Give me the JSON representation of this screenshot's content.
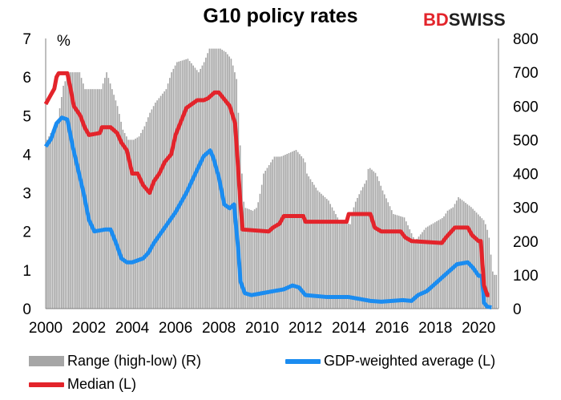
{
  "title": "G10 policy rates",
  "logo": {
    "part1": "BD",
    "part2": "SWISS"
  },
  "colors": {
    "range": "#a6a6a6",
    "gdp": "#1b8cf0",
    "median": "#e3242b"
  },
  "chart_data": {
    "type": "bar+line",
    "left_axis": {
      "label": "%",
      "min": 0,
      "max": 7,
      "ticks": [
        0,
        1,
        2,
        3,
        4,
        5,
        6,
        7
      ]
    },
    "right_axis": {
      "min": 0,
      "max": 800,
      "ticks": [
        0,
        100,
        200,
        300,
        400,
        500,
        600,
        700,
        800
      ]
    },
    "x_ticks": [
      "2000",
      "2002",
      "2004",
      "2006",
      "2008",
      "2010",
      "2012",
      "2014",
      "2016",
      "2018",
      "2020"
    ],
    "x_range": [
      2000,
      2020.917
    ],
    "grid": false,
    "legend_position": "bottom",
    "series": [
      {
        "name": "Range (high-low) (R)",
        "type": "bar",
        "axis": "right",
        "points": [
          [
            2000,
            500
          ],
          [
            2000.5,
            560
          ],
          [
            2000.75,
            660
          ],
          [
            2001,
            700
          ],
          [
            2001.5,
            700
          ],
          [
            2001.75,
            650
          ],
          [
            2002,
            650
          ],
          [
            2002.5,
            650
          ],
          [
            2002.75,
            700
          ],
          [
            2003.25,
            600
          ],
          [
            2003.5,
            530
          ],
          [
            2003.75,
            500
          ],
          [
            2004,
            500
          ],
          [
            2004.25,
            510
          ],
          [
            2004.5,
            540
          ],
          [
            2004.75,
            580
          ],
          [
            2005,
            610
          ],
          [
            2005.5,
            650
          ],
          [
            2005.75,
            700
          ],
          [
            2006,
            730
          ],
          [
            2006.5,
            740
          ],
          [
            2006.75,
            720
          ],
          [
            2007,
            700
          ],
          [
            2007.25,
            730
          ],
          [
            2007.5,
            770
          ],
          [
            2007.75,
            770
          ],
          [
            2008,
            770
          ],
          [
            2008.25,
            760
          ],
          [
            2008.5,
            740
          ],
          [
            2008.75,
            680
          ],
          [
            2008.9,
            500
          ],
          [
            2009.1,
            300
          ],
          [
            2009.5,
            290
          ],
          [
            2009.7,
            300
          ],
          [
            2009.9,
            360
          ],
          [
            2010,
            400
          ],
          [
            2010.3,
            430
          ],
          [
            2010.5,
            450
          ],
          [
            2010.8,
            450
          ],
          [
            2011.5,
            470
          ],
          [
            2011.9,
            440
          ],
          [
            2012,
            400
          ],
          [
            2012.5,
            350
          ],
          [
            2013,
            320
          ],
          [
            2013.5,
            260
          ],
          [
            2014,
            250
          ],
          [
            2014.2,
            310
          ],
          [
            2014.5,
            350
          ],
          [
            2014.75,
            380
          ],
          [
            2014.85,
            420
          ],
          [
            2015.2,
            400
          ],
          [
            2015.5,
            350
          ],
          [
            2016,
            280
          ],
          [
            2016.5,
            270
          ],
          [
            2017,
            200
          ],
          [
            2017.5,
            240
          ],
          [
            2018.3,
            270
          ],
          [
            2018.5,
            290
          ],
          [
            2018.75,
            300
          ],
          [
            2019,
            330
          ],
          [
            2019.6,
            300
          ],
          [
            2019.9,
            280
          ],
          [
            2020.2,
            260
          ],
          [
            2020.4,
            220
          ],
          [
            2020.6,
            100
          ],
          [
            2020.75,
            100
          ]
        ]
      },
      {
        "name": "GDP-weighted average (L)",
        "type": "line",
        "axis": "left",
        "points": [
          [
            2000,
            4.2
          ],
          [
            2000.25,
            4.4
          ],
          [
            2000.5,
            4.8
          ],
          [
            2000.75,
            4.95
          ],
          [
            2001,
            4.9
          ],
          [
            2001.25,
            4.2
          ],
          [
            2001.5,
            3.6
          ],
          [
            2001.75,
            3.0
          ],
          [
            2002,
            2.3
          ],
          [
            2002.25,
            2.0
          ],
          [
            2002.75,
            2.05
          ],
          [
            2003,
            2.05
          ],
          [
            2003.25,
            1.7
          ],
          [
            2003.5,
            1.3
          ],
          [
            2003.75,
            1.2
          ],
          [
            2004,
            1.2
          ],
          [
            2004.5,
            1.3
          ],
          [
            2004.75,
            1.45
          ],
          [
            2005,
            1.7
          ],
          [
            2005.5,
            2.1
          ],
          [
            2006,
            2.5
          ],
          [
            2006.5,
            3.0
          ],
          [
            2007,
            3.6
          ],
          [
            2007.3,
            3.95
          ],
          [
            2007.6,
            4.1
          ],
          [
            2007.75,
            3.9
          ],
          [
            2008,
            3.4
          ],
          [
            2008.25,
            2.7
          ],
          [
            2008.5,
            2.6
          ],
          [
            2008.7,
            2.7
          ],
          [
            2008.9,
            1.5
          ],
          [
            2009,
            0.7
          ],
          [
            2009.2,
            0.4
          ],
          [
            2009.5,
            0.35
          ],
          [
            2010,
            0.4
          ],
          [
            2010.5,
            0.45
          ],
          [
            2011,
            0.5
          ],
          [
            2011.4,
            0.6
          ],
          [
            2011.7,
            0.55
          ],
          [
            2012,
            0.35
          ],
          [
            2013,
            0.3
          ],
          [
            2014,
            0.3
          ],
          [
            2014.5,
            0.25
          ],
          [
            2015,
            0.2
          ],
          [
            2015.5,
            0.18
          ],
          [
            2016,
            0.2
          ],
          [
            2016.5,
            0.22
          ],
          [
            2016.9,
            0.2
          ],
          [
            2017.2,
            0.35
          ],
          [
            2017.6,
            0.45
          ],
          [
            2018,
            0.65
          ],
          [
            2018.5,
            0.9
          ],
          [
            2019,
            1.15
          ],
          [
            2019.5,
            1.2
          ],
          [
            2019.75,
            1.05
          ],
          [
            2020,
            0.85
          ],
          [
            2020.15,
            0.85
          ],
          [
            2020.25,
            0.15
          ],
          [
            2020.4,
            0.05
          ],
          [
            2020.6,
            0.03
          ]
        ]
      },
      {
        "name": "Median (L)",
        "type": "line",
        "axis": "left",
        "points": [
          [
            2000,
            5.3
          ],
          [
            2000.2,
            5.5
          ],
          [
            2000.4,
            5.7
          ],
          [
            2000.5,
            6.0
          ],
          [
            2000.6,
            6.1
          ],
          [
            2001,
            6.1
          ],
          [
            2001.15,
            5.7
          ],
          [
            2001.3,
            5.25
          ],
          [
            2001.6,
            5.0
          ],
          [
            2001.8,
            4.7
          ],
          [
            2002,
            4.5
          ],
          [
            2002.5,
            4.55
          ],
          [
            2002.6,
            4.7
          ],
          [
            2003,
            4.7
          ],
          [
            2003.3,
            4.55
          ],
          [
            2003.5,
            4.3
          ],
          [
            2003.75,
            4.1
          ],
          [
            2004,
            3.5
          ],
          [
            2004.25,
            3.5
          ],
          [
            2004.5,
            3.2
          ],
          [
            2004.8,
            3.0
          ],
          [
            2005,
            3.3
          ],
          [
            2005.25,
            3.5
          ],
          [
            2005.5,
            3.8
          ],
          [
            2005.8,
            4.0
          ],
          [
            2006,
            4.5
          ],
          [
            2006.5,
            5.2
          ],
          [
            2007,
            5.4
          ],
          [
            2007.3,
            5.4
          ],
          [
            2007.5,
            5.45
          ],
          [
            2007.8,
            5.6
          ],
          [
            2008,
            5.6
          ],
          [
            2008.5,
            5.25
          ],
          [
            2008.75,
            4.8
          ],
          [
            2009,
            2.7
          ],
          [
            2009.1,
            2.05
          ],
          [
            2010.3,
            2.0
          ],
          [
            2010.5,
            2.1
          ],
          [
            2010.8,
            2.2
          ],
          [
            2011,
            2.4
          ],
          [
            2011.4,
            2.4
          ],
          [
            2011.9,
            2.4
          ],
          [
            2012,
            2.25
          ],
          [
            2013.9,
            2.25
          ],
          [
            2014,
            2.45
          ],
          [
            2015,
            2.45
          ],
          [
            2015.2,
            2.1
          ],
          [
            2015.5,
            2.0
          ],
          [
            2016.4,
            2.0
          ],
          [
            2016.6,
            1.85
          ],
          [
            2016.9,
            1.75
          ],
          [
            2018.3,
            1.7
          ],
          [
            2018.5,
            1.85
          ],
          [
            2018.9,
            2.1
          ],
          [
            2019.5,
            2.1
          ],
          [
            2019.7,
            1.9
          ],
          [
            2020,
            1.75
          ],
          [
            2020.1,
            1.75
          ],
          [
            2020.25,
            0.6
          ],
          [
            2020.4,
            0.35
          ],
          [
            2020.5,
            0.35
          ]
        ]
      }
    ]
  }
}
